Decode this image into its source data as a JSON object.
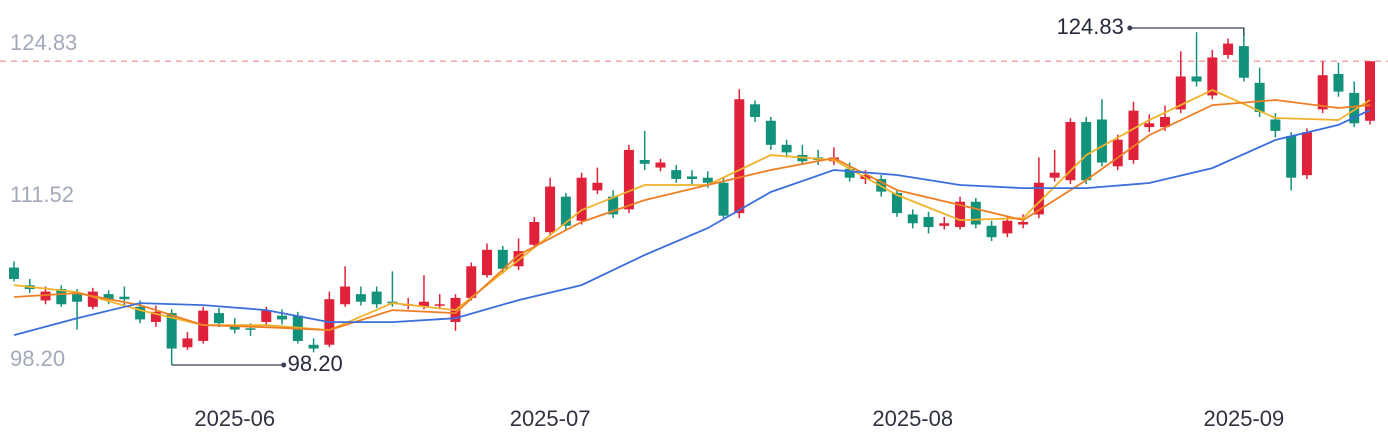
{
  "chart_data": {
    "type": "candlestick",
    "x": [
      0,
      1,
      2,
      3,
      4,
      5,
      6,
      7,
      8,
      9,
      10,
      11,
      12,
      13,
      14,
      15,
      16,
      17,
      18,
      19,
      20,
      21,
      22,
      23,
      24,
      25,
      26,
      27,
      28,
      29,
      30,
      31,
      32,
      33,
      34,
      35,
      36,
      37,
      38,
      39,
      40,
      41,
      42,
      43,
      44,
      45,
      46,
      47,
      48,
      49,
      50,
      51,
      52,
      53,
      54,
      55,
      56,
      57,
      58,
      59,
      60,
      61,
      62,
      63,
      64,
      65,
      66,
      67,
      68,
      69,
      70,
      71,
      72,
      73,
      74,
      75,
      76,
      77,
      78,
      79,
      80,
      81,
      82,
      83,
      84,
      85,
      86
    ],
    "open": [
      105.9,
      104.5,
      103.3,
      104.2,
      103.8,
      102.8,
      103.8,
      103.6,
      102.8,
      101.6,
      102.3,
      99.6,
      100.1,
      102.3,
      101.3,
      101.1,
      101.6,
      102.1,
      102.1,
      99.8,
      99.8,
      103.0,
      103.8,
      104.0,
      103.2,
      102.9,
      102.8,
      103.0,
      101.6,
      103.5,
      105.3,
      107.3,
      106.0,
      107.7,
      108.7,
      111.5,
      109.6,
      112.0,
      111.5,
      110.5,
      114.4,
      113.8,
      113.6,
      113.1,
      113.0,
      112.6,
      110.2,
      118.8,
      117.5,
      115.6,
      114.8,
      114.6,
      114.3,
      113.7,
      112.9,
      112.9,
      111.8,
      110.1,
      109.9,
      109.2,
      109.1,
      111.1,
      109.2,
      108.6,
      109.3,
      110.1,
      113.0,
      112.8,
      117.4,
      117.6,
      113.9,
      114.4,
      117.0,
      117.0,
      118.4,
      121.0,
      119.5,
      122.7,
      123.4,
      120.5,
      117.6,
      116.3,
      113.2,
      118.4,
      121.2,
      119.7,
      117.5
    ],
    "close": [
      105.0,
      104.2,
      104.0,
      103.0,
      103.2,
      104.0,
      103.4,
      103.4,
      101.8,
      102.4,
      99.5,
      100.3,
      102.5,
      101.5,
      101.0,
      101.0,
      102.5,
      101.8,
      100.1,
      99.5,
      103.4,
      104.4,
      103.2,
      103.0,
      103.1,
      103.0,
      103.2,
      103.0,
      103.5,
      106.0,
      107.3,
      105.8,
      107.2,
      109.5,
      112.3,
      109.2,
      113.0,
      112.6,
      110.1,
      115.2,
      114.1,
      114.2,
      112.9,
      112.9,
      112.6,
      110.0,
      119.2,
      117.8,
      115.6,
      115.0,
      114.3,
      114.4,
      114.6,
      113.0,
      113.2,
      111.9,
      110.2,
      109.4,
      109.1,
      109.4,
      111.1,
      109.3,
      108.3,
      109.6,
      109.5,
      112.6,
      113.4,
      117.4,
      112.8,
      114.2,
      116.0,
      118.3,
      117.3,
      117.8,
      121.0,
      120.6,
      122.5,
      123.6,
      120.9,
      118.2,
      116.7,
      113.0,
      116.6,
      121.1,
      119.8,
      117.3,
      122.2
    ],
    "high": [
      106.4,
      105.0,
      104.4,
      104.5,
      104.2,
      104.3,
      104.1,
      104.4,
      103.3,
      102.9,
      102.6,
      100.8,
      102.8,
      102.7,
      101.9,
      101.5,
      102.8,
      102.6,
      102.4,
      100.3,
      104.0,
      106.0,
      104.4,
      104.4,
      105.6,
      103.5,
      105.3,
      103.8,
      103.8,
      106.3,
      107.8,
      107.6,
      108.2,
      109.9,
      113.0,
      111.8,
      113.4,
      113.8,
      112.0,
      115.6,
      116.7,
      114.5,
      114.0,
      113.6,
      113.5,
      113.0,
      120.0,
      119.1,
      117.8,
      116.0,
      115.6,
      115.2,
      115.4,
      114.2,
      113.6,
      113.2,
      112.1,
      110.5,
      110.3,
      109.9,
      111.5,
      111.4,
      109.6,
      110.0,
      110.1,
      114.6,
      115.2,
      117.7,
      117.8,
      119.2,
      116.4,
      119.0,
      118.0,
      118.7,
      123.0,
      124.5,
      123.1,
      124.0,
      124.83,
      121.7,
      118.1,
      116.6,
      116.9,
      122.2,
      122.1,
      120.6,
      122.2
    ],
    "low": [
      104.8,
      103.9,
      103.0,
      102.8,
      101.0,
      102.6,
      103.0,
      102.9,
      101.5,
      101.2,
      98.2,
      99.4,
      99.9,
      101.2,
      100.7,
      100.5,
      101.3,
      101.4,
      99.9,
      99.2,
      99.6,
      102.8,
      102.9,
      102.7,
      102.8,
      102.6,
      102.6,
      102.6,
      100.9,
      103.3,
      105.1,
      105.4,
      105.7,
      107.5,
      108.5,
      108.9,
      109.3,
      111.7,
      109.8,
      110.2,
      113.6,
      113.5,
      112.6,
      112.4,
      112.2,
      109.7,
      109.8,
      117.4,
      115.2,
      114.6,
      114.0,
      114.0,
      114.0,
      112.7,
      112.5,
      111.5,
      109.9,
      109.0,
      108.6,
      108.9,
      108.9,
      109.0,
      108.0,
      108.3,
      109.0,
      109.8,
      112.7,
      112.5,
      112.5,
      113.9,
      113.6,
      114.1,
      116.6,
      116.7,
      118.1,
      120.2,
      119.2,
      122.4,
      120.6,
      117.8,
      116.2,
      112.0,
      112.9,
      118.1,
      119.4,
      117.0,
      117.2
    ],
    "up_color": "#e0213a",
    "down_color": "#12917b",
    "ylim": [
      98.2,
      124.83
    ],
    "yticks": [
      {
        "value": 124.83,
        "label": "124.83"
      },
      {
        "value": 111.52,
        "label": "111.52"
      },
      {
        "value": 98.2,
        "label": "98.20"
      }
    ],
    "xlim": [
      0,
      86
    ],
    "xticks": [
      {
        "value": 14,
        "label": "2025-06"
      },
      {
        "value": 34,
        "label": "2025-07"
      },
      {
        "value": 57,
        "label": "2025-08"
      },
      {
        "value": 78,
        "label": "2025-09"
      }
    ],
    "series": [
      {
        "color": "#f0b22a",
        "x": [
          0,
          4,
          8,
          12,
          16,
          20,
          24,
          28,
          32,
          36,
          40,
          44,
          48,
          52,
          56,
          60,
          64,
          68,
          72,
          76,
          80,
          84,
          86
        ],
        "values": [
          104.51,
          103.96,
          102.54,
          101.35,
          101.35,
          100.96,
          103.09,
          102.54,
          106.49,
          110.44,
          112.42,
          112.42,
          114.79,
          114.4,
          111.63,
          109.65,
          109.81,
          114.79,
          117.56,
          119.93,
          117.72,
          117.56,
          119.14
        ]
      },
      {
        "color": "#ee7f24",
        "x": [
          0,
          4,
          8,
          12,
          16,
          20,
          24,
          28,
          32,
          36,
          40,
          44,
          48,
          52,
          56,
          60,
          64,
          68,
          72,
          76,
          80,
          84,
          86
        ],
        "values": [
          103.57,
          103.88,
          102.93,
          101.35,
          101.19,
          100.96,
          102.54,
          102.3,
          106.89,
          109.5,
          111.23,
          112.42,
          113.61,
          114.55,
          112.02,
          110.84,
          109.65,
          112.81,
          116.37,
          118.74,
          119.14,
          118.51,
          118.74
        ]
      },
      {
        "color": "#3c6fdb",
        "x": [
          0,
          4,
          8,
          12,
          16,
          20,
          24,
          28,
          32,
          36,
          40,
          44,
          48,
          52,
          56,
          60,
          64,
          68,
          72,
          76,
          80,
          84,
          86
        ],
        "values": [
          100.56,
          101.9,
          103.09,
          102.93,
          102.54,
          101.59,
          101.59,
          101.9,
          103.33,
          104.51,
          106.89,
          109.02,
          111.87,
          113.61,
          113.21,
          112.42,
          112.18,
          112.18,
          112.58,
          113.76,
          115.98,
          117.17,
          118.35
        ]
      }
    ],
    "annotations": [
      {
        "index": 78,
        "label": "124.83"
      },
      {
        "index": 10,
        "label": "98.20"
      }
    ],
    "last_close_line": true
  }
}
